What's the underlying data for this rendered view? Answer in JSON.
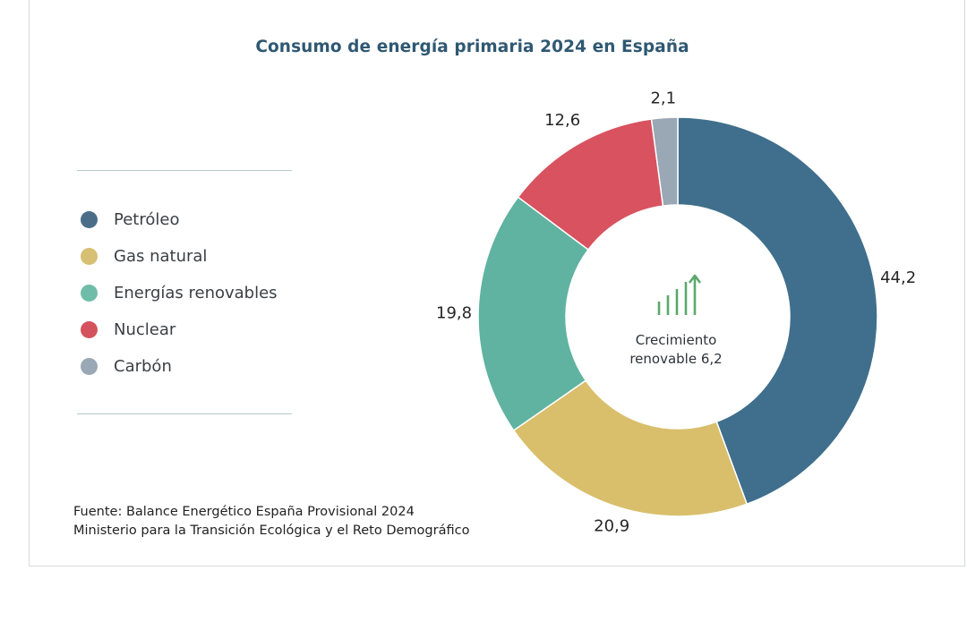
{
  "chart_data": {
    "type": "pie",
    "donut": true,
    "title": "Consumo de energía primaria 2024 en España",
    "categories": [
      "Petróleo",
      "Gas natural",
      "Energías renovables",
      "Nuclear",
      "Carbón"
    ],
    "values": [
      44.2,
      20.9,
      19.8,
      12.6,
      2.1
    ],
    "value_labels": [
      "44,2",
      "20,9",
      "19,8",
      "12,6",
      "2,1"
    ],
    "colors": [
      "#3f6f8c",
      "#d9bf6c",
      "#5fb3a0",
      "#d8525f",
      "#9aa7b4"
    ],
    "legend_colors": [
      "#4a6e87",
      "#d7bf73",
      "#6fbda9",
      "#d4525e",
      "#9aa7b4"
    ],
    "legend_position": "left",
    "center_annotation": {
      "icon": "growth-bars-arrow-icon",
      "line1": "Crecimiento",
      "line2": "renovable 6,2"
    },
    "icon_color": "#5aa86b"
  },
  "source": {
    "line1": "Fuente: Balance Energético España Provisional 2024",
    "line2": "Ministerio para la Transición Ecológica y el Reto Demográfico"
  }
}
